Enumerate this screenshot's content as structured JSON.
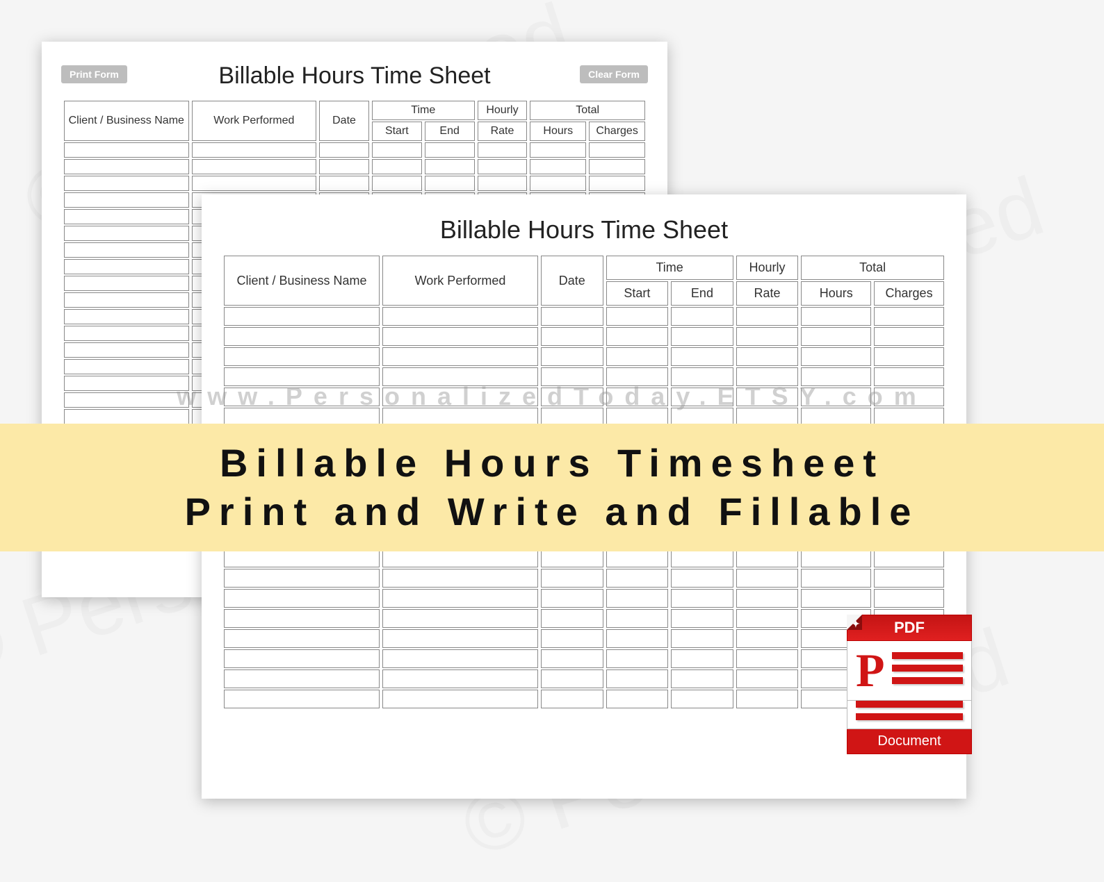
{
  "background_color": "#f5f5f5",
  "sheet_color": "#ffffff",
  "border_color": "#888888",
  "watermark_color": "rgba(200,200,200,0.15)",
  "back_sheet": {
    "title": "Billable Hours Time Sheet",
    "print_btn": "Print Form",
    "clear_btn": "Clear Form",
    "row_count": 22
  },
  "front_sheet": {
    "title": "Billable Hours Time Sheet",
    "row_count": 20
  },
  "columns": {
    "client": "Client / Business Name",
    "work": "Work Performed",
    "date": "Date",
    "time": "Time",
    "start": "Start",
    "end": "End",
    "hourly": "Hourly",
    "rate": "Rate",
    "total": "Total",
    "hours": "Hours",
    "charges": "Charges"
  },
  "url_watermark": "www.PersonalizedToday.ETSY.com",
  "banner": {
    "line1": "Billable Hours Timesheet",
    "line2": "Print and Write and Fillable",
    "bg": "#fce9a7",
    "text_color": "#111111"
  },
  "pdf_badge": {
    "top": "PDF",
    "bottom": "Document",
    "letter": "P",
    "red": "#d01515"
  }
}
